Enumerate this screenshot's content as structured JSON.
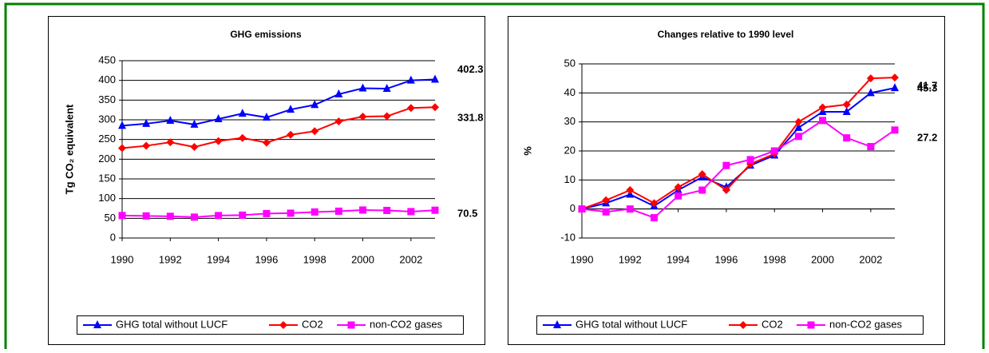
{
  "chart_data": [
    {
      "type": "line",
      "title": "GHG emissions",
      "y_label": "Tg CO₂ equivalent",
      "x": [
        1990,
        1991,
        1992,
        1993,
        1994,
        1995,
        1996,
        1997,
        1998,
        1999,
        2000,
        2001,
        2002,
        2003
      ],
      "xlim": [
        1990,
        2003
      ],
      "xticks": [
        1990,
        1992,
        1994,
        1996,
        1998,
        2000,
        2002
      ],
      "ylim": [
        0,
        450
      ],
      "yticks": [
        0,
        50,
        100,
        150,
        200,
        250,
        300,
        350,
        400,
        450
      ],
      "grid": true,
      "legend": "bottom",
      "series": [
        {
          "name": "GHG total without LUCF",
          "color": "#0000ff",
          "marker": "triangle",
          "values": [
            285,
            290,
            298,
            288,
            302,
            316,
            306,
            326,
            338,
            365,
            380,
            379,
            400,
            402.3
          ]
        },
        {
          "name": "CO2",
          "color": "#ff0000",
          "marker": "diamond",
          "values": [
            228,
            234,
            243,
            231,
            246,
            254,
            242,
            262,
            271,
            296,
            308,
            309,
            330,
            331.8
          ]
        },
        {
          "name": "non-CO2 gases",
          "color": "#ff00ff",
          "marker": "square",
          "values": [
            57,
            56,
            55,
            53,
            57,
            58,
            62,
            63,
            66,
            68,
            71,
            70,
            67,
            70.5
          ]
        }
      ]
    },
    {
      "type": "line",
      "title": "Changes relative to 1990 level",
      "y_label": "%",
      "x": [
        1990,
        1991,
        1992,
        1993,
        1994,
        1995,
        1996,
        1997,
        1998,
        1999,
        2000,
        2001,
        2002,
        2003
      ],
      "xlim": [
        1990,
        2003
      ],
      "xticks": [
        1990,
        1992,
        1994,
        1996,
        1998,
        2000,
        2002
      ],
      "ylim": [
        -10,
        50
      ],
      "yticks": [
        -10,
        0,
        10,
        20,
        30,
        40,
        50
      ],
      "grid": true,
      "legend": "bottom",
      "series": [
        {
          "name": "GHG total without LUCF",
          "color": "#0000ff",
          "marker": "triangle",
          "values": [
            0,
            2,
            5,
            1,
            6.5,
            11,
            7.5,
            15,
            18.5,
            28,
            33.5,
            33.5,
            40,
            41.7
          ]
        },
        {
          "name": "CO2",
          "color": "#ff0000",
          "marker": "diamond",
          "values": [
            0,
            3,
            6.5,
            2,
            7.5,
            12,
            6.5,
            15.5,
            19,
            30,
            35,
            36,
            45,
            45.3
          ]
        },
        {
          "name": "non-CO2 gases",
          "color": "#ff00ff",
          "marker": "square",
          "values": [
            0,
            -1,
            0,
            -3,
            4.5,
            6.5,
            15,
            17,
            20,
            25,
            30.5,
            24.5,
            21.5,
            27.2
          ]
        }
      ]
    }
  ]
}
